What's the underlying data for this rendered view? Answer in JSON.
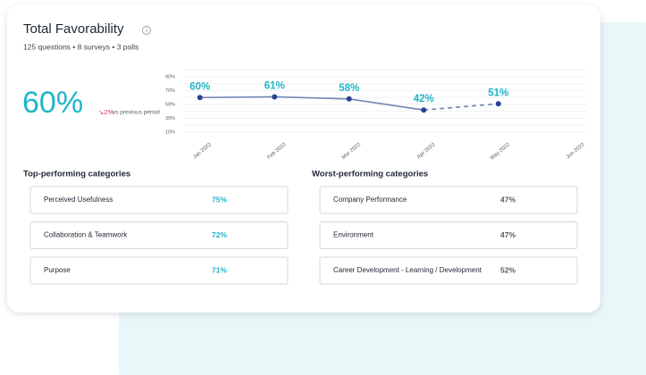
{
  "header": {
    "title": "Total Favorability",
    "subtitle": "125 questions • 8 surveys • 3 polls"
  },
  "summary": {
    "value": "60%",
    "change": "↘2%",
    "change_note": "vs previous period"
  },
  "chart_data": {
    "type": "line",
    "categories": [
      "Jan 2022",
      "Feb 2022",
      "Mar 2022",
      "Apr 2022",
      "May 2022",
      "Jun 2022"
    ],
    "values": [
      60,
      61,
      58,
      42,
      51,
      null
    ],
    "value_labels": [
      "60%",
      "61%",
      "58%",
      "42%",
      "51%",
      null
    ],
    "color": "#7186b8",
    "marker_color": "#2d4290",
    "label_color": "#1fb5c8",
    "dashed_from": "Apr 2022",
    "ylim": [
      0,
      100
    ],
    "yticks": [
      {
        "value": 10,
        "label": "10%"
      },
      {
        "value": 30,
        "label": "30%"
      },
      {
        "value": 50,
        "label": "50%"
      },
      {
        "value": 70,
        "label": "70%"
      },
      {
        "value": 90,
        "label": "90%"
      }
    ],
    "minor_yticks": [
      20,
      40,
      60,
      80,
      100
    ],
    "grid": true
  },
  "top_categories": {
    "title": "Top-performing categories",
    "rows": [
      {
        "name": "Perceived Usefulness",
        "value": "75%"
      },
      {
        "name": "Collaboration & Teamwork",
        "value": "72%"
      },
      {
        "name": "Purpose",
        "value": "71%"
      }
    ]
  },
  "worst_categories": {
    "title": "Worst-performing categories",
    "rows": [
      {
        "name": "Company Performance",
        "value": "47%"
      },
      {
        "name": "Environment",
        "value": "47%"
      },
      {
        "name": "Career Development - Learning / Development",
        "value": "52%"
      }
    ]
  }
}
